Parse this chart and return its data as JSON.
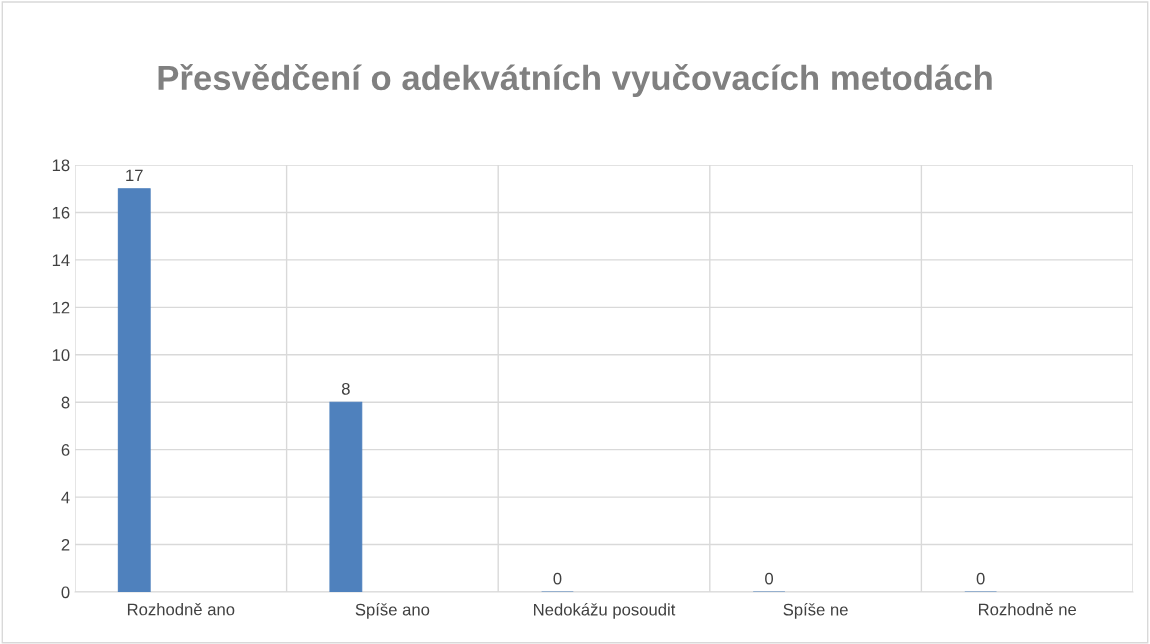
{
  "chart_data": {
    "type": "bar",
    "title": "Přesvědčení o adekvátních vyučovacích metodách",
    "categories": [
      "Rozhodně ano",
      "Spíše ano",
      "Nedokážu posoudit",
      "Spíše ne",
      "Rozhodně ne"
    ],
    "values": [
      17,
      8,
      0,
      0,
      0
    ],
    "color": "#4f81bd",
    "ylim": [
      0,
      18
    ],
    "yticks": [
      0,
      2,
      4,
      6,
      8,
      10,
      12,
      14,
      16,
      18
    ],
    "grid": true,
    "data_labels": true
  }
}
